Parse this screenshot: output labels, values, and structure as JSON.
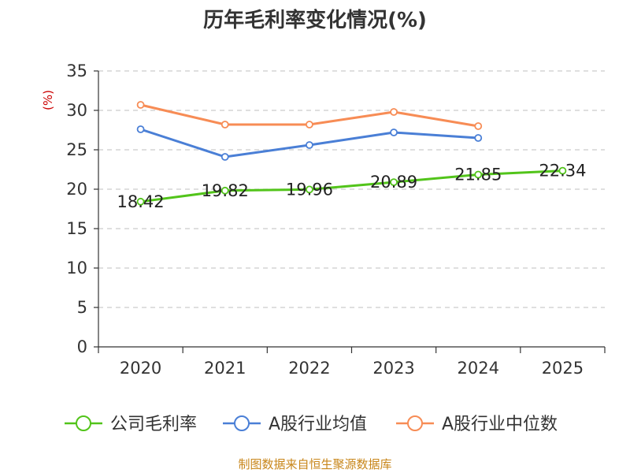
{
  "title": "历年毛利率变化情况(%)",
  "source": "制图数据来自恒生聚源数据库",
  "colors": {
    "series_company": "#52c41a",
    "series_avg": "#4a7fd6",
    "series_median": "#f78c55",
    "unit": "#cc0000",
    "source": "#c8861a",
    "axis": "#333333",
    "grid": "#cccccc"
  },
  "chart_data": {
    "type": "line",
    "title": "历年毛利率变化情况(%)",
    "ylabel": "(%)",
    "xlabel": "",
    "categories": [
      "2020",
      "2021",
      "2022",
      "2023",
      "2024",
      "2025"
    ],
    "ylim": [
      0,
      35
    ],
    "yticks": [
      0,
      5,
      10,
      15,
      20,
      25,
      30,
      35
    ],
    "grid": true,
    "legend_position": "bottom",
    "series": [
      {
        "name": "公司毛利率",
        "color": "#52c41a",
        "values": [
          18.42,
          19.82,
          19.96,
          20.89,
          21.85,
          22.34
        ],
        "labels": [
          "18.42",
          "19.82",
          "19.96",
          "20.89",
          "21.85",
          "22.34"
        ]
      },
      {
        "name": "A股行业均值",
        "color": "#4a7fd6",
        "values": [
          27.6,
          24.1,
          25.6,
          27.2,
          26.5,
          null
        ]
      },
      {
        "name": "A股行业中位数",
        "color": "#f78c55",
        "values": [
          30.7,
          28.2,
          28.2,
          29.8,
          28.0,
          null
        ]
      }
    ]
  }
}
